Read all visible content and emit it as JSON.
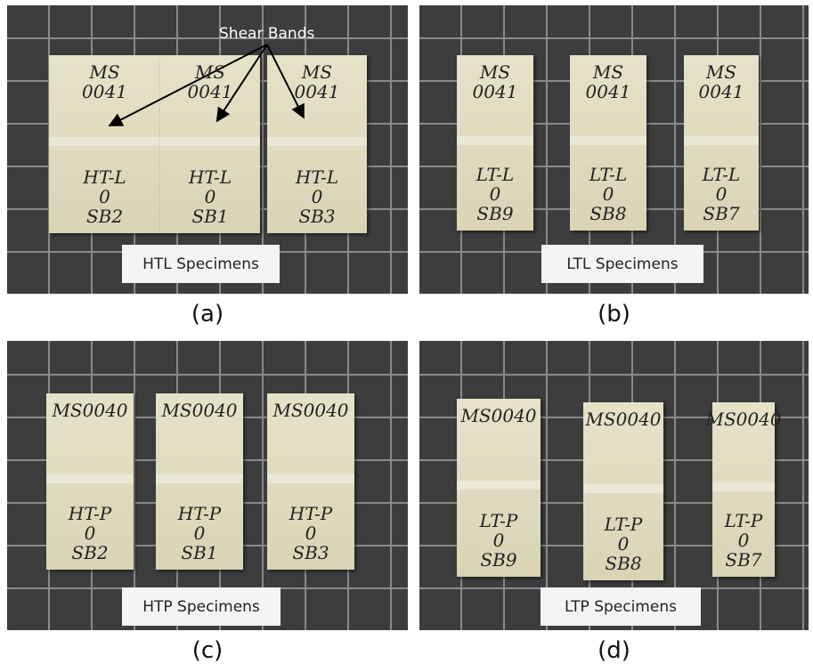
{
  "panels": [
    {
      "caption": "(a)",
      "label": "HTL Specimens",
      "annotation": "Shear Bands",
      "specimens": [
        {
          "top": [
            "MS",
            "0041"
          ],
          "bottom": [
            "HT-L",
            "0",
            "SB2"
          ]
        },
        {
          "top": [
            "MS",
            "0041"
          ],
          "bottom": [
            "HT-L",
            "0",
            "SB1"
          ]
        },
        {
          "top": [
            "MS",
            "0041"
          ],
          "bottom": [
            "HT-L",
            "0",
            "SB3"
          ]
        }
      ]
    },
    {
      "caption": "(b)",
      "label": "LTL Specimens",
      "specimens": [
        {
          "top": [
            "MS",
            "0041"
          ],
          "bottom": [
            "LT-L",
            "0",
            "SB9"
          ]
        },
        {
          "top": [
            "MS",
            "0041"
          ],
          "bottom": [
            "LT-L",
            "0",
            "SB8"
          ]
        },
        {
          "top": [
            "MS",
            "0041"
          ],
          "bottom": [
            "LT-L",
            "0",
            "SB7"
          ]
        }
      ]
    },
    {
      "caption": "(c)",
      "label": "HTP Specimens",
      "specimens": [
        {
          "top": [
            "MS0040"
          ],
          "bottom": [
            "HT-P",
            "0",
            "SB2"
          ]
        },
        {
          "top": [
            "MS0040"
          ],
          "bottom": [
            "HT-P",
            "0",
            "SB1"
          ]
        },
        {
          "top": [
            "MS0040"
          ],
          "bottom": [
            "HT-P",
            "0",
            "SB3"
          ]
        }
      ]
    },
    {
      "caption": "(d)",
      "label": "LTP Specimens",
      "specimens": [
        {
          "top": [
            "MS0040"
          ],
          "bottom": [
            "LT-P",
            "0",
            "SB9"
          ]
        },
        {
          "top": [
            "MS0040"
          ],
          "bottom": [
            "LT-P",
            "0",
            "SB8"
          ]
        },
        {
          "top": [
            "MS0040"
          ],
          "bottom": [
            "LT-P",
            "0",
            "SB7"
          ]
        }
      ]
    }
  ]
}
